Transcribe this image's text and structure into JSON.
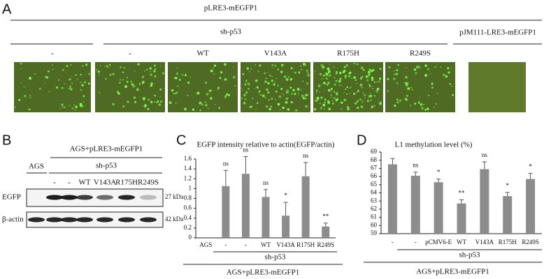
{
  "panel_a": {
    "letter": "A",
    "title": "pLRE3-mEGFP1",
    "group": "sh-p53",
    "lanes": [
      "-",
      "-",
      "WT",
      "V143A",
      "R175H",
      "R249S"
    ],
    "control": "pJM111-LRE3-mEGFP1"
  },
  "panel_b": {
    "letter": "B",
    "title": "AGS+pLRE3-mEGFP1",
    "control": "AGS",
    "group": "sh-p53",
    "lanes": [
      "-",
      "-",
      "WT",
      "V143A",
      "R175H",
      "R249S"
    ],
    "rows": [
      "EGFP",
      "β-actin"
    ],
    "sizes": [
      "27 kDa",
      "42 kDa"
    ]
  },
  "chart_data": [
    {
      "type": "bar",
      "panel": "C",
      "title": "EGFP intensity relative to actin(EGFP/actin)",
      "categories": [
        "AGS",
        "-",
        "-",
        "WT",
        "V143A",
        "R175H",
        "R249S"
      ],
      "values": [
        0,
        1.05,
        1.3,
        0.83,
        0.45,
        1.25,
        0.23
      ],
      "errors": [
        0,
        0.32,
        0.35,
        0.15,
        0.27,
        0.28,
        0.07
      ],
      "annotations": [
        null,
        "ns",
        "ns",
        "ns",
        "*",
        "ns",
        "**"
      ],
      "group_labels": [
        "sh-p53",
        "AGS+pLRE3-mEGFP1"
      ],
      "color": "#8c8c8c",
      "ylim": [
        0,
        1.6
      ],
      "yticks": [
        0,
        0.2,
        0.4,
        0.6,
        0.8,
        1,
        1.2,
        1.4,
        1.6
      ]
    },
    {
      "type": "bar",
      "panel": "D",
      "title": "L1 methylation level (%)",
      "categories": [
        "-",
        "-",
        "pCMV6-E",
        "WT",
        "V143A",
        "R175H",
        "R249S"
      ],
      "values": [
        67.5,
        66.1,
        65.3,
        62.7,
        66.9,
        63.6,
        65.7
      ],
      "errors": [
        0.7,
        0.45,
        0.4,
        0.45,
        0.9,
        0.45,
        0.7
      ],
      "annotations": [
        null,
        "ns",
        "*",
        "**",
        "ns",
        "*",
        "*"
      ],
      "group_labels": [
        "sh-p53",
        "AGS+pLRE3-mEGFP1"
      ],
      "color": "#8c8c8c",
      "ylim": [
        59,
        69
      ],
      "yticks": [
        59,
        60,
        61,
        62,
        63,
        64,
        65,
        66,
        67,
        68,
        69
      ]
    }
  ]
}
